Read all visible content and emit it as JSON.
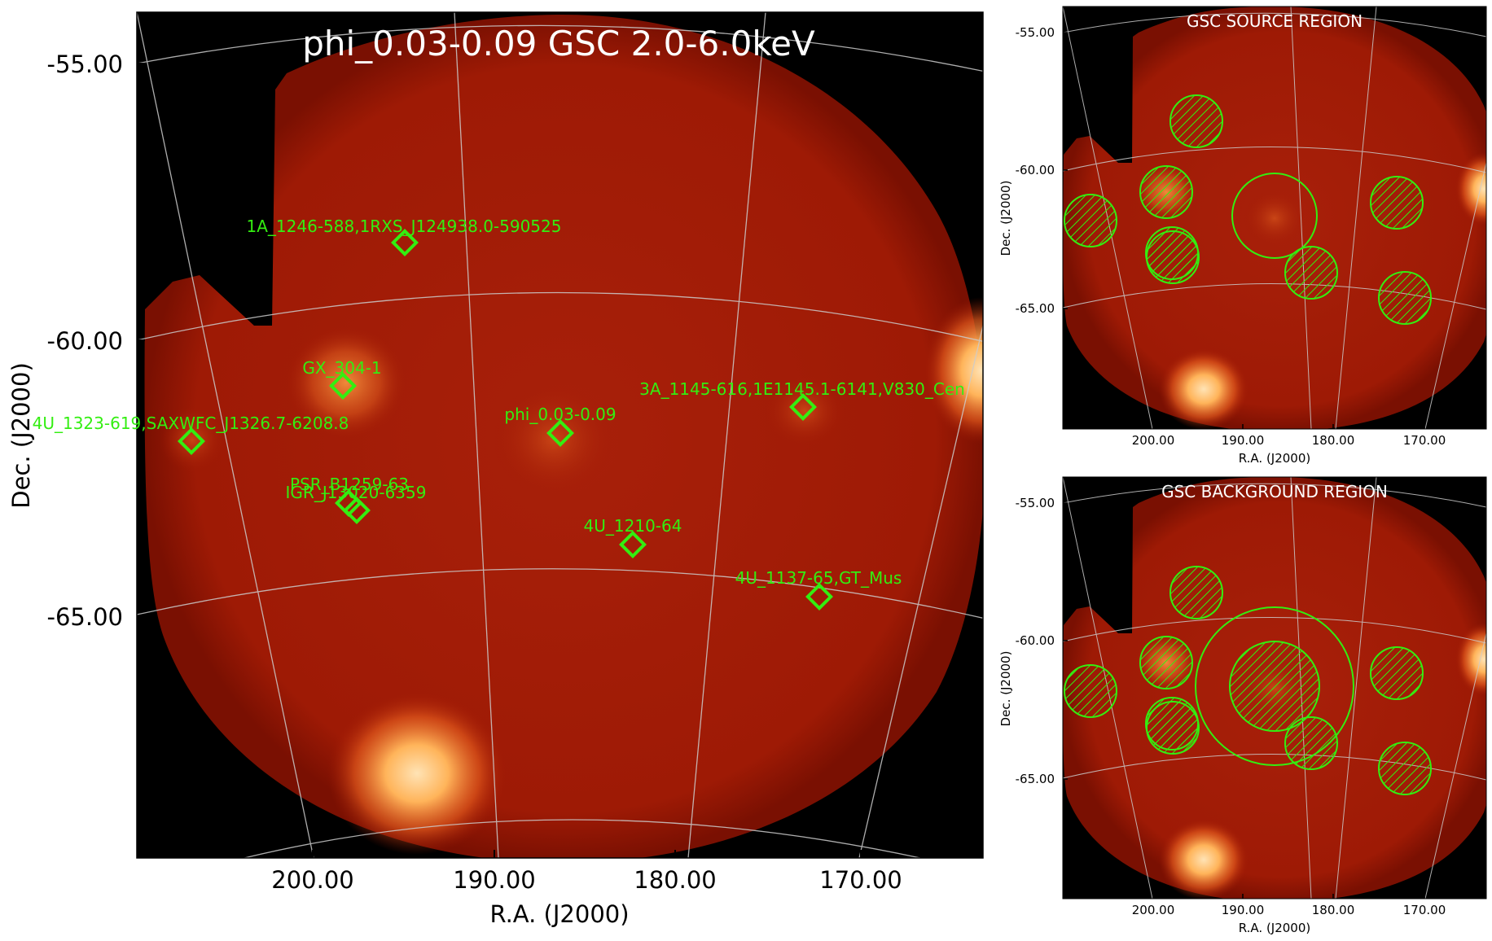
{
  "figure": {
    "main": {
      "title": "phi_0.03-0.09 GSC 2.0-6.0keV",
      "xlabel": "R.A. (J2000)",
      "ylabel": "Dec. (J2000)",
      "xticks": [
        "200.00",
        "190.00",
        "180.00",
        "170.00"
      ],
      "yticks": [
        "-55.00",
        "-60.00",
        "-65.00"
      ]
    },
    "source_panel": {
      "title": "GSC SOURCE REGION",
      "xlabel": "R.A. (J2000)",
      "ylabel": "Dec. (J2000)",
      "xticks": [
        "200.00",
        "190.00",
        "180.00",
        "170.00"
      ],
      "yticks": [
        "-55.00",
        "-60.00",
        "-65.00"
      ]
    },
    "background_panel": {
      "title": "GSC BACKGROUND REGION",
      "xlabel": "R.A. (J2000)",
      "ylabel": "Dec. (J2000)",
      "xticks": [
        "200.00",
        "190.00",
        "180.00",
        "170.00"
      ],
      "yticks": [
        "-55.00",
        "-60.00",
        "-65.00"
      ]
    }
  },
  "colors": {
    "marker": "#33ee11",
    "grid": "#cccccc",
    "background": "#000000",
    "map_base": "#a11a04",
    "hot": "#ffd9a0",
    "title_text": "#ffffff"
  },
  "chart_data": [
    {
      "type": "heatmap",
      "panel": "main",
      "title": "phi_0.03-0.09 GSC 2.0-6.0keV",
      "xlabel": "R.A. (J2000)",
      "ylabel": "Dec. (J2000)",
      "ra_ticks": [
        200,
        190,
        180,
        170
      ],
      "dec_ticks": [
        -55,
        -60,
        -65
      ],
      "grid": true,
      "sources": [
        {
          "label": "1A_1246-588,1RXS_J124938.0-590525",
          "ra": 192.4,
          "dec": -58.6
        },
        {
          "label": "GX_304-1",
          "ra": 195.3,
          "dec": -60.8
        },
        {
          "label": "4U_1323-619,SAXWFC_J1326.7-6208.8",
          "ra": 201.6,
          "dec": -61.9
        },
        {
          "label": "phi_0.03-0.09",
          "ra": 186.1,
          "dec": -61.7
        },
        {
          "label": "3A_1145-616,1E1145.1-6141,V830_Cen",
          "ra": 176.9,
          "dec": -61.3
        },
        {
          "label": "PSR_B1259-63",
          "ra": 195.7,
          "dec": -63.1
        },
        {
          "label": "IGR_J13020-6359",
          "ra": 195.5,
          "dec": -63.3
        },
        {
          "label": "4U_1210-64",
          "ra": 183.3,
          "dec": -64.0
        },
        {
          "label": "4U_1137-65,GT_Mus",
          "ra": 175.7,
          "dec": -64.9
        }
      ]
    },
    {
      "type": "heatmap",
      "panel": "source_region",
      "title": "GSC SOURCE REGION",
      "xlabel": "R.A. (J2000)",
      "ylabel": "Dec. (J2000)",
      "ra_ticks": [
        200,
        190,
        180,
        170
      ],
      "dec_ticks": [
        -55,
        -60,
        -65
      ],
      "grid": true
    },
    {
      "type": "heatmap",
      "panel": "background_region",
      "title": "GSC BACKGROUND REGION",
      "xlabel": "R.A. (J2000)",
      "ylabel": "Dec. (J2000)",
      "ra_ticks": [
        200,
        190,
        180,
        170
      ],
      "dec_ticks": [
        -55,
        -60,
        -65
      ],
      "grid": true
    }
  ]
}
